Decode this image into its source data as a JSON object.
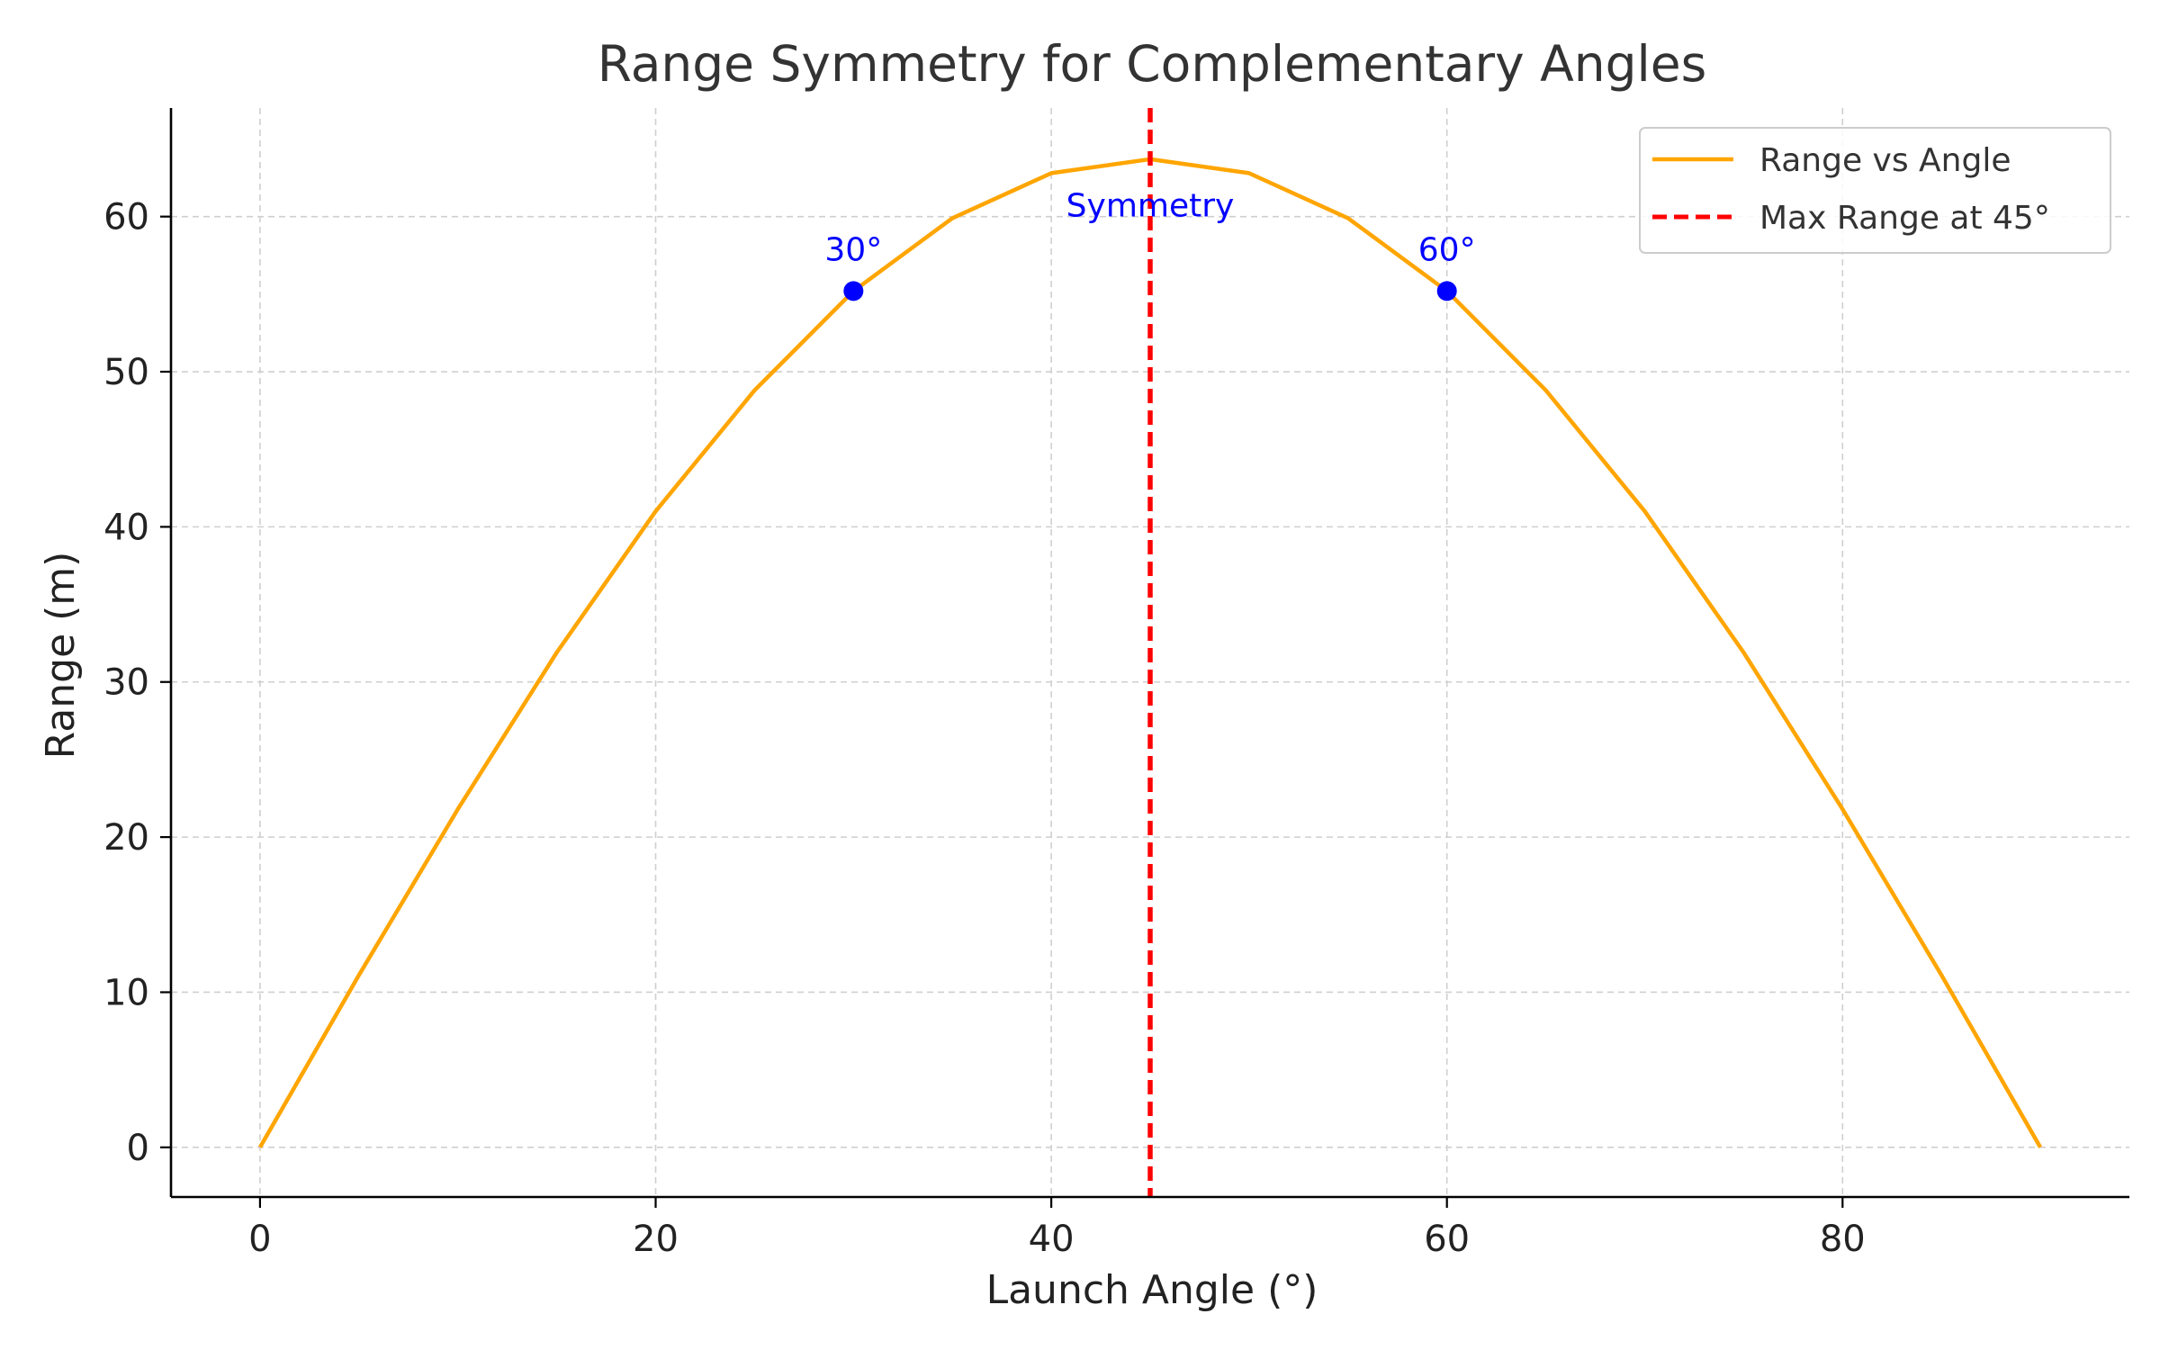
{
  "chart_data": {
    "type": "line",
    "title": "Range Symmetry for Complementary Angles",
    "xlabel": "Launch Angle (°)",
    "ylabel": "Range (m)",
    "xlim": [
      -4.5,
      94.5
    ],
    "ylim": [
      -3.2,
      67
    ],
    "xticks": [
      0,
      20,
      40,
      60,
      80
    ],
    "yticks": [
      0,
      10,
      20,
      30,
      40,
      50,
      60
    ],
    "grid": true,
    "legend_position": "top-right",
    "series": [
      {
        "name": "Range vs Angle",
        "kind": "line",
        "color": "#ffa500",
        "x": [
          0,
          5,
          10,
          15,
          20,
          25,
          30,
          35,
          40,
          45,
          50,
          55,
          60,
          65,
          70,
          75,
          80,
          85,
          90
        ],
        "y": [
          0,
          11.1,
          21.8,
          31.9,
          41.0,
          48.8,
          55.2,
          59.9,
          62.8,
          63.7,
          62.8,
          59.9,
          55.2,
          48.8,
          41.0,
          31.9,
          21.8,
          11.1,
          0
        ]
      },
      {
        "name": "Max Range at 45°",
        "kind": "vline",
        "color": "#ff0000",
        "x": 45
      }
    ],
    "points": [
      {
        "x": 30,
        "y": 55.2,
        "label": "30°",
        "color": "#0000ff"
      },
      {
        "x": 60,
        "y": 55.2,
        "label": "60°",
        "color": "#0000ff"
      }
    ],
    "annotations": [
      {
        "text": "Symmetry",
        "x": 45,
        "y": 60,
        "color": "#0000ff"
      }
    ]
  }
}
